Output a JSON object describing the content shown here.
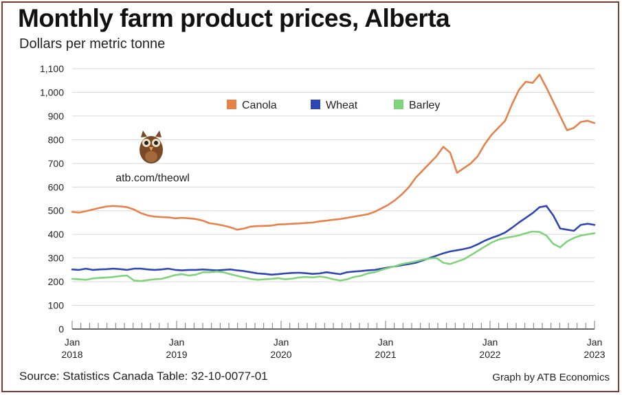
{
  "header": {
    "title": "Monthly farm product prices, Alberta",
    "subtitle": "Dollars per metric tonne"
  },
  "footer": {
    "source": "Source: Statistics Canada Table: 32-10-0077-01",
    "credit": "Graph by ATB Economics"
  },
  "owl": {
    "url": "atb.com/theowl"
  },
  "colors": {
    "canola": "#e8804a",
    "wheat": "#2f45b5",
    "barley": "#7fd37a",
    "grid": "#d6d6d6",
    "frame": "#7a3b2e"
  },
  "chart_data": {
    "type": "line",
    "title": "Monthly farm product prices, Alberta",
    "subtitle": "Dollars per metric tonne",
    "ylim": [
      0,
      1100
    ],
    "y_ticks": [
      "0",
      "100",
      "200",
      "300",
      "400",
      "500",
      "600",
      "700",
      "800",
      "900",
      "1,000",
      "1,100"
    ],
    "x_tick_labels": [
      {
        "month": "Jan",
        "year": "2018"
      },
      {
        "month": "Jan",
        "year": "2019"
      },
      {
        "month": "Jan",
        "year": "2020"
      },
      {
        "month": "Jan",
        "year": "2021"
      },
      {
        "month": "Jan",
        "year": "2022"
      },
      {
        "month": "Jan",
        "year": "2023"
      }
    ],
    "x_start": "2018-01",
    "x_end": "2023-01",
    "grid": true,
    "legend_position": "top-center",
    "series": [
      {
        "name": "Canola",
        "color": "#e8804a",
        "values": [
          495,
          492,
          498,
          505,
          512,
          518,
          520,
          518,
          515,
          505,
          490,
          480,
          475,
          473,
          472,
          468,
          470,
          468,
          465,
          458,
          447,
          443,
          437,
          430,
          420,
          425,
          433,
          435,
          436,
          437,
          442,
          443,
          445,
          446,
          448,
          450,
          455,
          458,
          462,
          465,
          470,
          475,
          480,
          485,
          495,
          510,
          525,
          545,
          570,
          600,
          640,
          670,
          700,
          730,
          770,
          745,
          660,
          680,
          700,
          730,
          780,
          820,
          850,
          880,
          950,
          1010,
          1045,
          1040,
          1075,
          1020,
          960,
          900,
          840,
          850,
          875,
          880,
          870
        ],
        "x_index_start": 0
      },
      {
        "name": "Wheat",
        "color": "#2f45b5",
        "values": [
          252,
          250,
          255,
          250,
          252,
          253,
          255,
          253,
          250,
          255,
          255,
          252,
          250,
          252,
          255,
          250,
          248,
          250,
          250,
          252,
          250,
          248,
          250,
          252,
          248,
          245,
          240,
          235,
          233,
          230,
          232,
          235,
          237,
          238,
          236,
          233,
          235,
          240,
          236,
          232,
          240,
          243,
          245,
          248,
          250,
          255,
          260,
          265,
          270,
          275,
          280,
          290,
          300,
          310,
          320,
          328,
          333,
          338,
          345,
          358,
          373,
          385,
          395,
          408,
          428,
          450,
          470,
          490,
          515,
          520,
          480,
          425,
          420,
          415,
          440,
          445,
          440
        ],
        "x_index_start": 0
      },
      {
        "name": "Barley",
        "color": "#7fd37a",
        "values": [
          212,
          210,
          208,
          214,
          216,
          218,
          220,
          224,
          226,
          205,
          203,
          207,
          210,
          212,
          220,
          228,
          232,
          226,
          230,
          240,
          240,
          243,
          240,
          232,
          225,
          218,
          212,
          208,
          210,
          212,
          215,
          210,
          213,
          218,
          220,
          218,
          222,
          218,
          210,
          205,
          210,
          220,
          225,
          235,
          240,
          250,
          258,
          266,
          275,
          280,
          286,
          293,
          298,
          300,
          280,
          275,
          285,
          295,
          312,
          330,
          348,
          365,
          378,
          385,
          390,
          396,
          405,
          412,
          410,
          395,
          360,
          345,
          370,
          385,
          395,
          400,
          405
        ],
        "x_index_start": 0
      }
    ]
  }
}
